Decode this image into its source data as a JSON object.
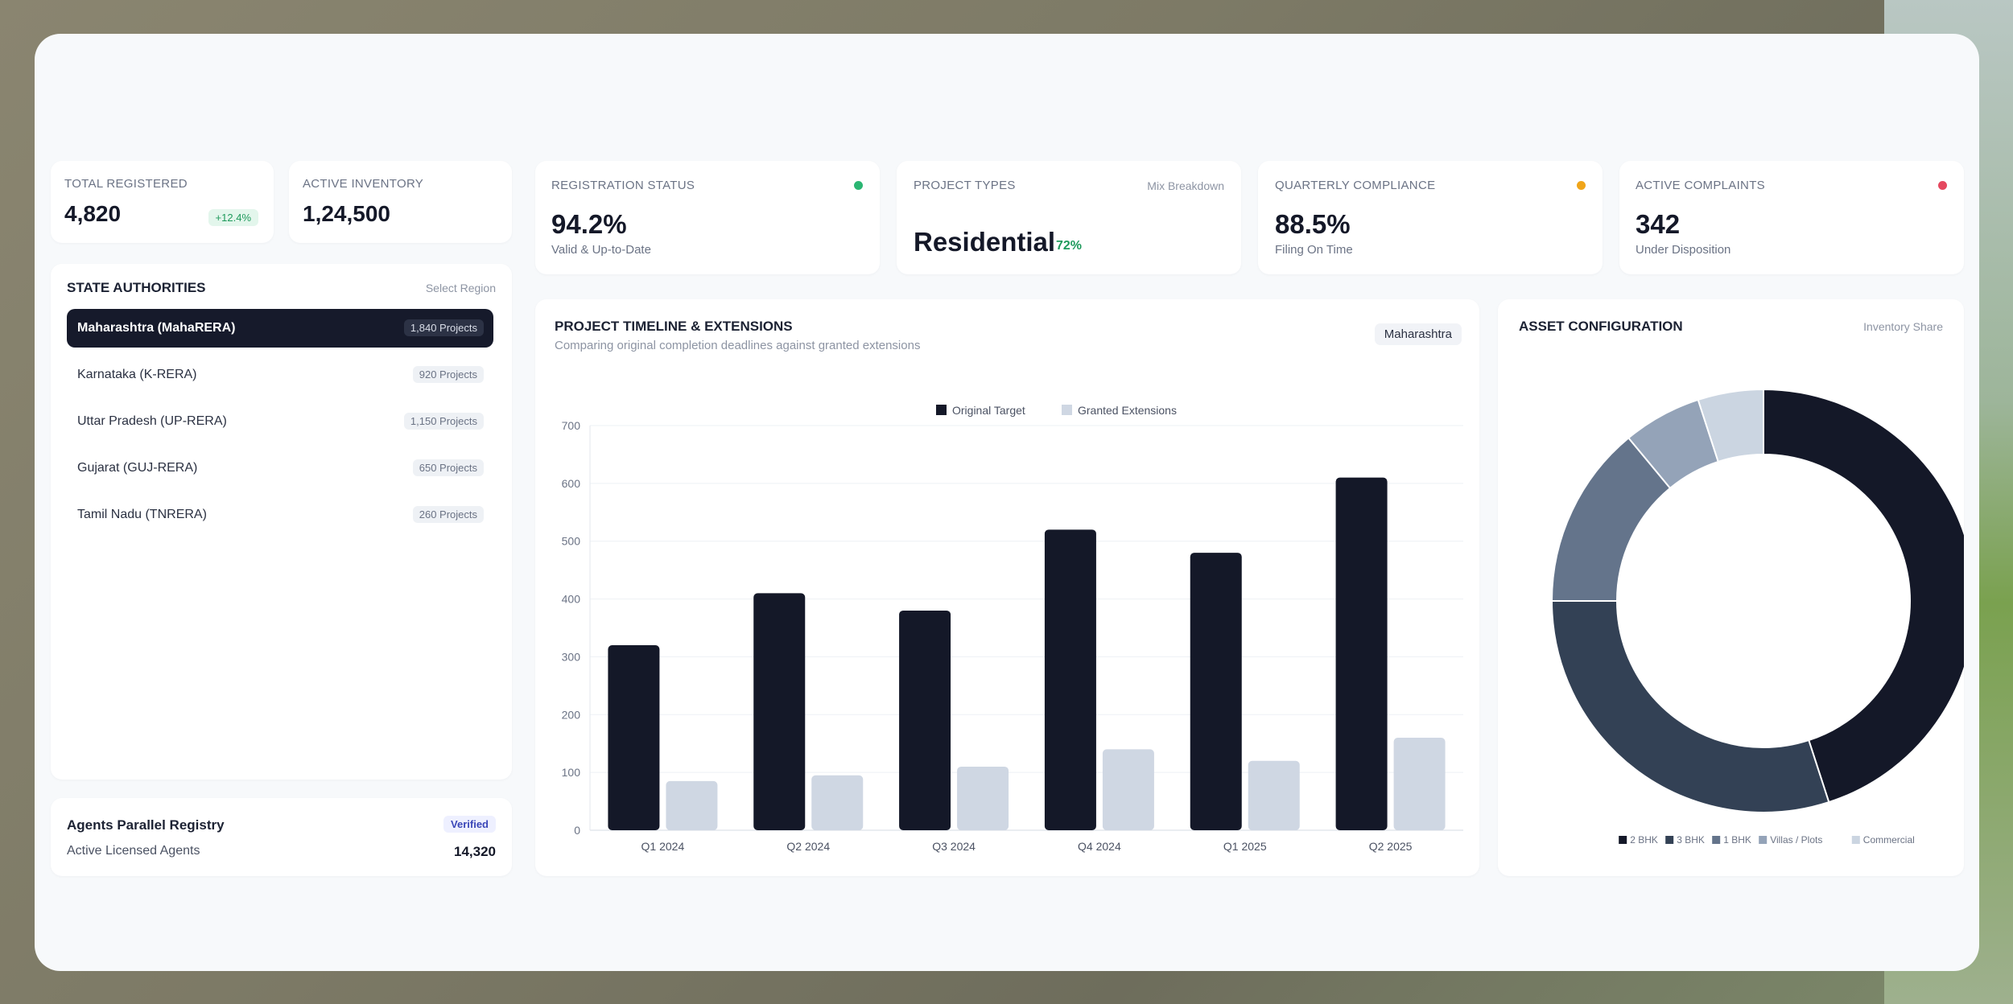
{
  "kpis_left": [
    {
      "label": "TOTAL REGISTERED",
      "value": "4,820",
      "badge": "+12.4%"
    },
    {
      "label": "ACTIVE INVENTORY",
      "value": "1,24,500"
    }
  ],
  "kpis_top": [
    {
      "label": "REGISTRATION STATUS",
      "value": "94.2%",
      "caption": "Valid & Up-to-Date",
      "dot_color": "#2bb673"
    },
    {
      "label": "PROJECT TYPES",
      "extra": "Mix Breakdown",
      "value": "Residential",
      "pct": "72%"
    },
    {
      "label": "QUARTERLY COMPLIANCE",
      "value": "88.5%",
      "caption": "Filing On Time",
      "dot_color": "#f0a51a"
    },
    {
      "label": "ACTIVE COMPLAINTS",
      "value": "342",
      "caption": "Under Disposition",
      "dot_color": "#e5485f"
    }
  ],
  "state_authorities": {
    "title": "STATE AUTHORITIES",
    "action": "Select Region",
    "items": [
      {
        "name": "Maharashtra (MahaRERA)",
        "count": "1,840 Projects"
      },
      {
        "name": "Karnataka (K-RERA)",
        "count": "920 Projects"
      },
      {
        "name": "Uttar Pradesh (UP-RERA)",
        "count": "1,150 Projects"
      },
      {
        "name": "Gujarat (GUJ-RERA)",
        "count": "650 Projects"
      },
      {
        "name": "Tamil Nadu (TNRERA)",
        "count": "260 Projects"
      }
    ]
  },
  "agents": {
    "title": "Agents Parallel Registry",
    "badge": "Verified",
    "label": "Active Licensed Agents",
    "value": "14,320"
  },
  "timeline": {
    "title": "PROJECT TIMELINE & EXTENSIONS",
    "subtitle": "Comparing original completion deadlines against granted extensions",
    "region": "Maharashtra"
  },
  "asset": {
    "title": "ASSET CONFIGURATION",
    "extra": "Inventory Share"
  },
  "colors": {
    "dark": "#141828",
    "light_bar": "#cfd7e3",
    "accent_green": "#2bb673"
  },
  "chart_data": [
    {
      "type": "bar",
      "categories": [
        "Q1 2024",
        "Q2 2024",
        "Q3 2024",
        "Q4 2024",
        "Q1 2025",
        "Q2 2025"
      ],
      "series": [
        {
          "name": "Original Target",
          "values": [
            320,
            410,
            380,
            520,
            480,
            610
          ],
          "color": "#141828"
        },
        {
          "name": "Granted Extensions",
          "values": [
            85,
            95,
            110,
            140,
            120,
            160
          ],
          "color": "#cfd7e3"
        }
      ],
      "ylim": [
        0,
        700
      ],
      "yticks": [
        0,
        100,
        200,
        300,
        400,
        500,
        600,
        700
      ],
      "grid": true,
      "legend": "top-center"
    },
    {
      "type": "pie",
      "donut": true,
      "labels": [
        "2 BHK",
        "3 BHK",
        "1 BHK",
        "Villas / Plots",
        "Commercial"
      ],
      "values": [
        45,
        30,
        14,
        6,
        5
      ],
      "colors": [
        "#141828",
        "#334155",
        "#64748b",
        "#94a3b8",
        "#cbd5e1"
      ],
      "legend": "bottom"
    }
  ]
}
